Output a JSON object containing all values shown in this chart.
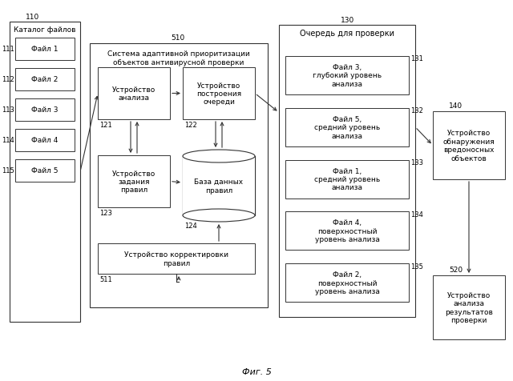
{
  "title": "Фиг. 5",
  "bg_color": "#ffffff",
  "border_color": "#333333",
  "text_color": "#000000",
  "box_fill": "#ffffff",
  "catalog_label": "Каталог файлов",
  "catalog_num": "110",
  "files": [
    {
      "label": "Файл 1",
      "num": "111"
    },
    {
      "label": "Файл 2",
      "num": "112"
    },
    {
      "label": "Файл 3",
      "num": "113"
    },
    {
      "label": "Файл 4",
      "num": "114"
    },
    {
      "label": "Файл 5",
      "num": "115"
    }
  ],
  "system_label": "Система адаптивной приоритизации\nобъектов антивирусной проверки",
  "system_num": "510",
  "device_analysis_label": "Устройство\nанализа",
  "device_analysis_num": "121",
  "device_queue_label": "Устройство\nпостроения\nочереди",
  "device_queue_num": "122",
  "device_rules_label": "Устройство\nзадания\nправил",
  "device_rules_num": "123",
  "database_label": "База данных\nправил",
  "database_num": "124",
  "device_correct_label": "Устройство корректировки\nправил",
  "device_correct_num": "511",
  "queue_label": "Очередь для проверки",
  "queue_num": "130",
  "queue_items": [
    {
      "label": "Файл 3,\nглубокий уровень\nанализа",
      "num": "131"
    },
    {
      "label": "Файл 5,\nсредний уровень\nанализа",
      "num": "132"
    },
    {
      "label": "Файл 1,\nсредний уровень\nанализа",
      "num": "133"
    },
    {
      "label": "Файл 4,\nповерхностный\nуровень анализа",
      "num": "134"
    },
    {
      "label": "Файл 2,\nповерхностный\nуровень анализа",
      "num": "135"
    }
  ],
  "detect_label": "Устройство\nобнаружения\nвредоносных\nобъектов",
  "detect_num": "140",
  "analysis_label": "Устройство\nанализа\nрезультатов\nпроверки",
  "analysis_num": "520"
}
